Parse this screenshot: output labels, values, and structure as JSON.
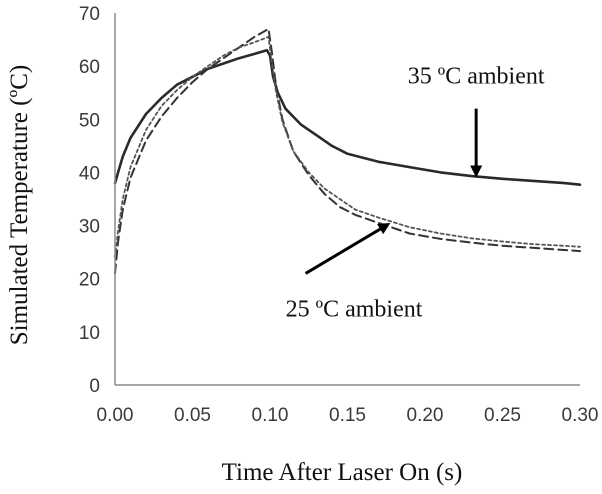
{
  "chart_data": {
    "type": "line",
    "xlabel": "Time After Laser On (s)",
    "ylabel": "Simulated Temperature (ºC)",
    "xlim": [
      0,
      0.3
    ],
    "ylim": [
      0,
      70
    ],
    "x_ticks": [
      "0.00",
      "0.05",
      "0.10",
      "0.15",
      "0.20",
      "0.25",
      "0.30"
    ],
    "y_ticks": [
      "0",
      "10",
      "20",
      "30",
      "40",
      "50",
      "60",
      "70"
    ],
    "grid": false,
    "series": [
      {
        "style": "solid",
        "color": "#2a2a2a",
        "points": [
          [
            0.0,
            38
          ],
          [
            0.002,
            40
          ],
          [
            0.005,
            43
          ],
          [
            0.01,
            46.5
          ],
          [
            0.02,
            51
          ],
          [
            0.03,
            54
          ],
          [
            0.04,
            56.5
          ],
          [
            0.05,
            58
          ],
          [
            0.06,
            59.5
          ],
          [
            0.07,
            60.5
          ],
          [
            0.08,
            61.5
          ],
          [
            0.09,
            62.3
          ],
          [
            0.098,
            63
          ],
          [
            0.1,
            62
          ],
          [
            0.102,
            58
          ],
          [
            0.105,
            55
          ],
          [
            0.11,
            52
          ],
          [
            0.12,
            49
          ],
          [
            0.13,
            47
          ],
          [
            0.14,
            45
          ],
          [
            0.15,
            43.5
          ],
          [
            0.17,
            42
          ],
          [
            0.19,
            41
          ],
          [
            0.21,
            40
          ],
          [
            0.23,
            39.3
          ],
          [
            0.25,
            38.8
          ],
          [
            0.27,
            38.4
          ],
          [
            0.29,
            38
          ],
          [
            0.3,
            37.7
          ]
        ]
      },
      {
        "style": "dashed",
        "color": "#333333",
        "points": [
          [
            0.0,
            21
          ],
          [
            0.002,
            27
          ],
          [
            0.005,
            33
          ],
          [
            0.01,
            39
          ],
          [
            0.02,
            46
          ],
          [
            0.03,
            50.5
          ],
          [
            0.04,
            54
          ],
          [
            0.05,
            57
          ],
          [
            0.06,
            59.5
          ],
          [
            0.07,
            61.5
          ],
          [
            0.08,
            63.5
          ],
          [
            0.09,
            65.5
          ],
          [
            0.099,
            67
          ],
          [
            0.101,
            63
          ],
          [
            0.104,
            56
          ],
          [
            0.108,
            50
          ],
          [
            0.115,
            44
          ],
          [
            0.125,
            39.5
          ],
          [
            0.135,
            36
          ],
          [
            0.145,
            33.5
          ],
          [
            0.155,
            32
          ],
          [
            0.17,
            30.5
          ],
          [
            0.19,
            28.5
          ],
          [
            0.21,
            27.5
          ],
          [
            0.23,
            26.8
          ],
          [
            0.25,
            26.2
          ],
          [
            0.27,
            25.8
          ],
          [
            0.29,
            25.4
          ],
          [
            0.3,
            25.2
          ]
        ]
      },
      {
        "style": "dotted",
        "color": "#555555",
        "points": [
          [
            0.0,
            24
          ],
          [
            0.002,
            29
          ],
          [
            0.005,
            35
          ],
          [
            0.01,
            41
          ],
          [
            0.02,
            48
          ],
          [
            0.03,
            52.5
          ],
          [
            0.04,
            55.5
          ],
          [
            0.05,
            58
          ],
          [
            0.06,
            60
          ],
          [
            0.07,
            62
          ],
          [
            0.08,
            63.5
          ],
          [
            0.09,
            64.5
          ],
          [
            0.099,
            65.5
          ],
          [
            0.101,
            61
          ],
          [
            0.104,
            55
          ],
          [
            0.108,
            49.5
          ],
          [
            0.115,
            44
          ],
          [
            0.125,
            40
          ],
          [
            0.135,
            37
          ],
          [
            0.145,
            35
          ],
          [
            0.155,
            33
          ],
          [
            0.17,
            31.5
          ],
          [
            0.19,
            29.7
          ],
          [
            0.21,
            28.5
          ],
          [
            0.23,
            27.6
          ],
          [
            0.25,
            27
          ],
          [
            0.27,
            26.5
          ],
          [
            0.29,
            26.2
          ],
          [
            0.3,
            26
          ]
        ]
      }
    ],
    "annotations": [
      {
        "text": "35 ºC ambient",
        "arrow_from": [
          0.233,
          52
        ],
        "arrow_to": [
          0.233,
          39.6
        ]
      },
      {
        "text": "25 ºC ambient",
        "arrow_from": [
          0.123,
          21
        ],
        "arrow_to": [
          0.176,
          30.2
        ]
      }
    ]
  }
}
